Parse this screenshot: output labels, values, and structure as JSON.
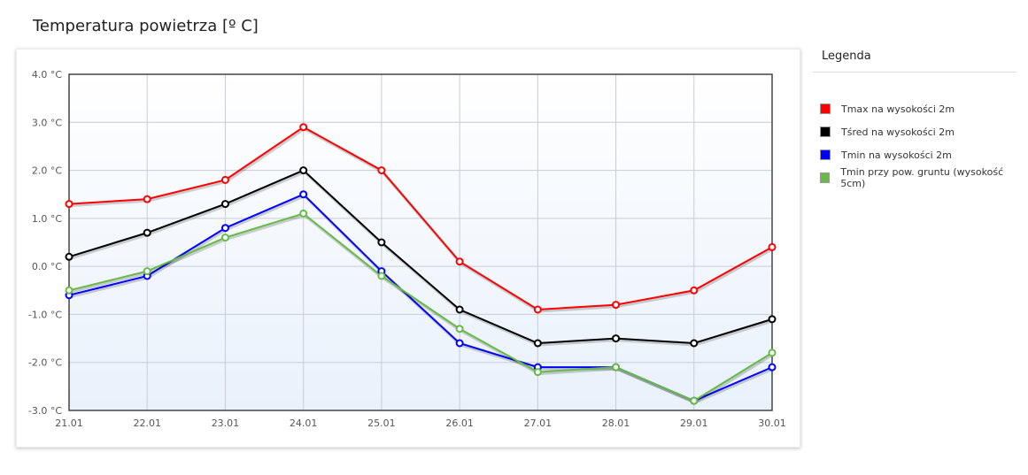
{
  "title": "Temperatura powietrza [º C]",
  "legend": {
    "title": "Legenda"
  },
  "chart_data": {
    "type": "line",
    "categories": [
      "21.01",
      "22.01",
      "23.01",
      "24.01",
      "25.01",
      "26.01",
      "27.01",
      "28.01",
      "29.01",
      "30.01"
    ],
    "ylim": [
      -3.0,
      4.0
    ],
    "yticks": [
      "4.0 °C",
      "3.0 °C",
      "2.0 °C",
      "1.0 °C",
      "0.0 °C",
      "-1.0 °C",
      "-2.0 °C",
      "-3.0 °C"
    ],
    "grid": true,
    "legend_position": "right",
    "series": [
      {
        "name": "Tmax na wysokości 2m",
        "color": "#ff0000",
        "values": [
          1.3,
          1.4,
          1.8,
          2.9,
          2.0,
          0.1,
          -0.9,
          -0.8,
          -0.5,
          0.4
        ]
      },
      {
        "name": "Tśred na wysokości 2m",
        "color": "#000000",
        "values": [
          0.2,
          0.7,
          1.3,
          2.0,
          0.5,
          -0.9,
          -1.6,
          -1.5,
          -1.6,
          -1.1
        ]
      },
      {
        "name": "Tmin na wysokości 2m",
        "color": "#0000ff",
        "values": [
          -0.6,
          -0.2,
          0.8,
          1.5,
          -0.1,
          -1.6,
          -2.1,
          -2.1,
          -2.8,
          -2.1
        ]
      },
      {
        "name": "Tmin przy pow. gruntu (wysokość 5cm)",
        "color": "#66bb44",
        "values": [
          -0.5,
          -0.1,
          0.6,
          1.1,
          -0.2,
          -1.3,
          -2.2,
          -2.1,
          -2.8,
          -1.8
        ]
      }
    ]
  }
}
